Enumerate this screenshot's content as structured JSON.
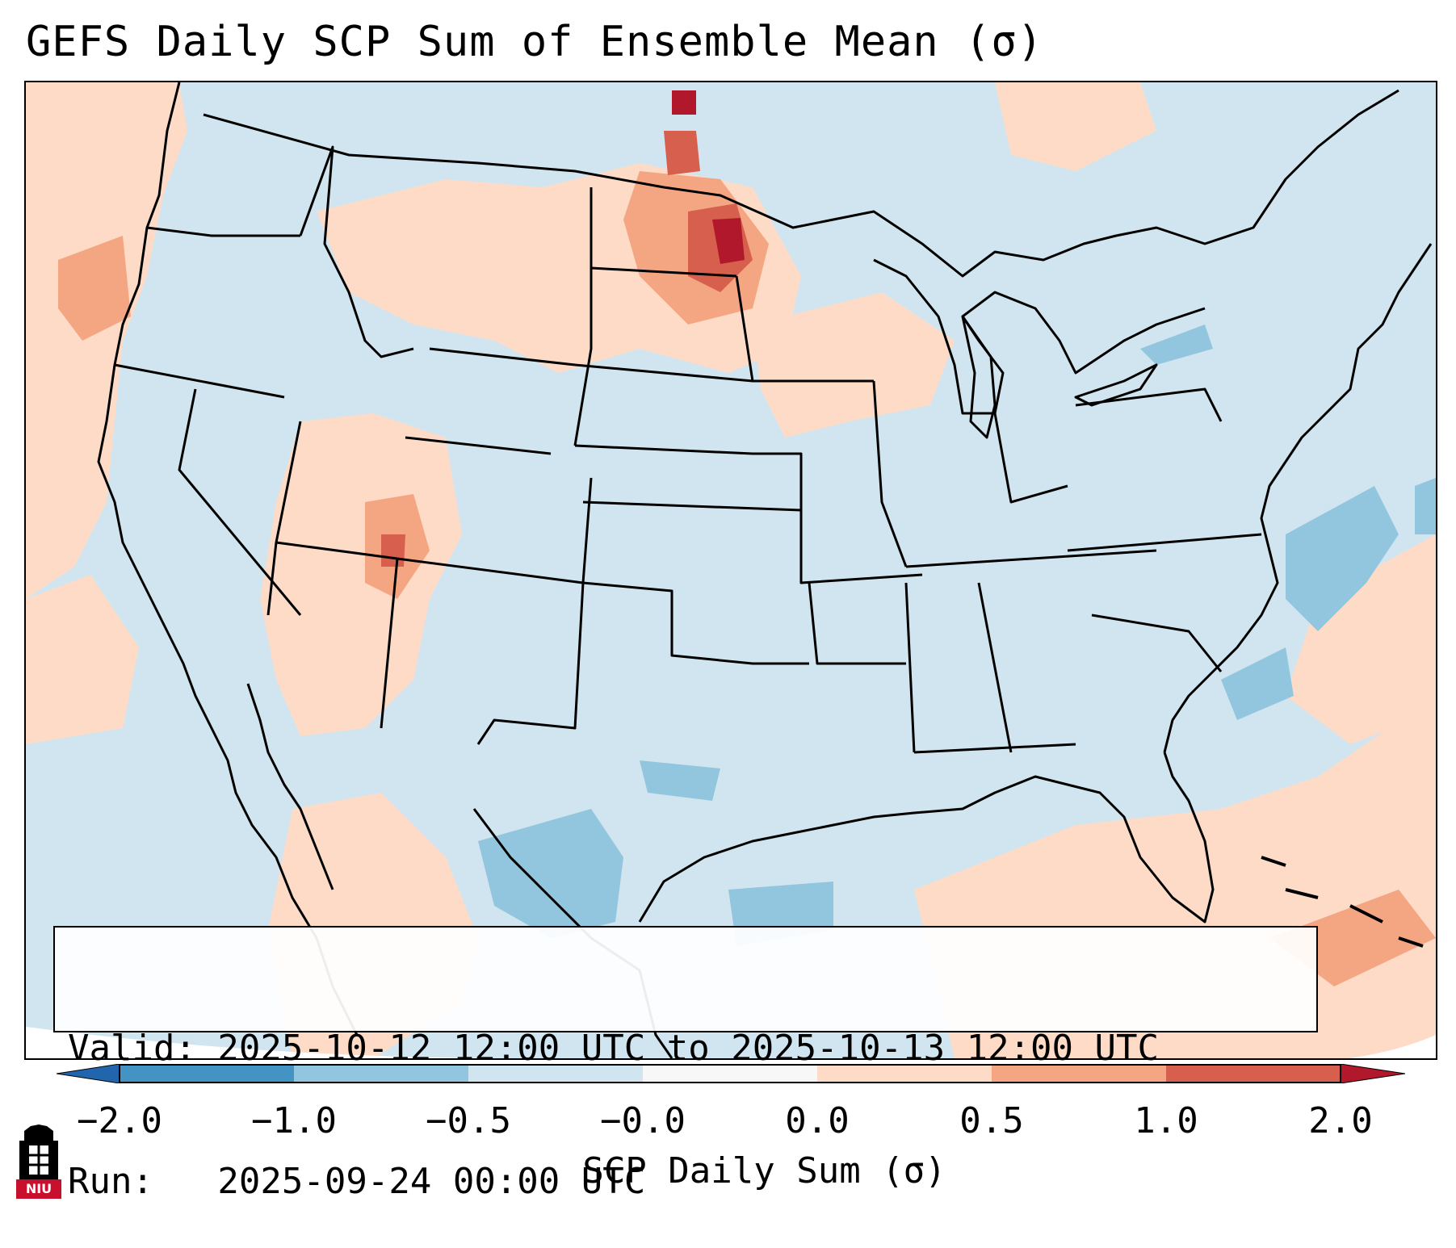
{
  "title": "GEFS Daily SCP Sum of Ensemble Mean (σ)",
  "info": {
    "valid_line": "Valid: 2025-10-12 12:00 UTC to 2025-10-13 12:00 UTC",
    "run_line": "Run:   2025-09-24 00:00 UTC"
  },
  "colorbar": {
    "label": "SCP Daily Sum (σ)",
    "ticks": [
      "−2.0",
      "−1.0",
      "−0.5",
      "−0.0",
      "0.0",
      "0.5",
      "1.0",
      "2.0"
    ],
    "colors": {
      "under": "#2166ac",
      "bin_neg2_neg1": "#4393c3",
      "bin_neg1_neg05": "#92c5de",
      "bin_neg05_0": "#d1e5f0",
      "bin_0": "#f7f7f7",
      "bin_0_05": "#fddbc7",
      "bin_05_1": "#f4a582",
      "bin_1_2": "#d6604d",
      "over": "#b2182b"
    }
  },
  "logo": {
    "text": "NIU"
  }
}
